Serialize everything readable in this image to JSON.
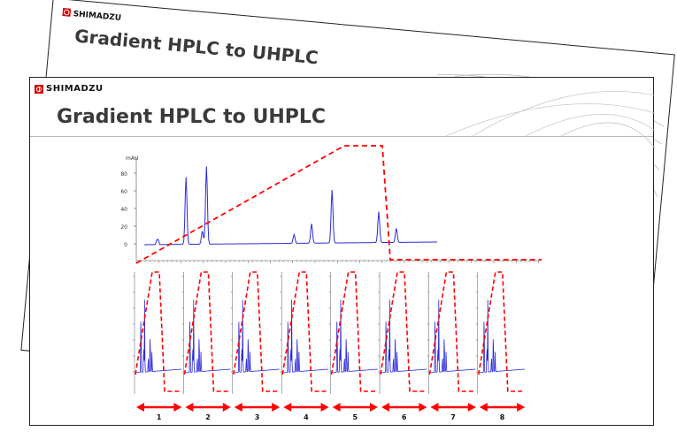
{
  "back_slide": {
    "logo": "SHIMADZU",
    "title": "Gradient HPLC to UHPLC"
  },
  "front_slide": {
    "logo": "SHIMADZU",
    "title": "Gradient HPLC to UHPLC"
  },
  "colors": {
    "trace": "#2b2bd9",
    "gradient": "#ff0000",
    "arrow": "#ff0000",
    "logo": "#d40000"
  },
  "hplc_chart": {
    "unit": "mAU",
    "y_ticks": [
      "80",
      "60",
      "40",
      "20",
      "0"
    ],
    "y_values": [
      80,
      60,
      40,
      20,
      0
    ],
    "peaks": [
      {
        "t": 0.14,
        "height": 76
      },
      {
        "t": 0.196,
        "height": 15
      },
      {
        "t": 0.21,
        "height": 88
      },
      {
        "t": 0.51,
        "height": 10
      },
      {
        "t": 0.57,
        "height": 22
      },
      {
        "t": 0.64,
        "height": 60
      },
      {
        "t": 0.8,
        "height": 35
      },
      {
        "t": 0.86,
        "height": 16
      }
    ]
  },
  "uhplc_runs": [
    "1",
    "2",
    "3",
    "4",
    "5",
    "6",
    "7",
    "8"
  ]
}
